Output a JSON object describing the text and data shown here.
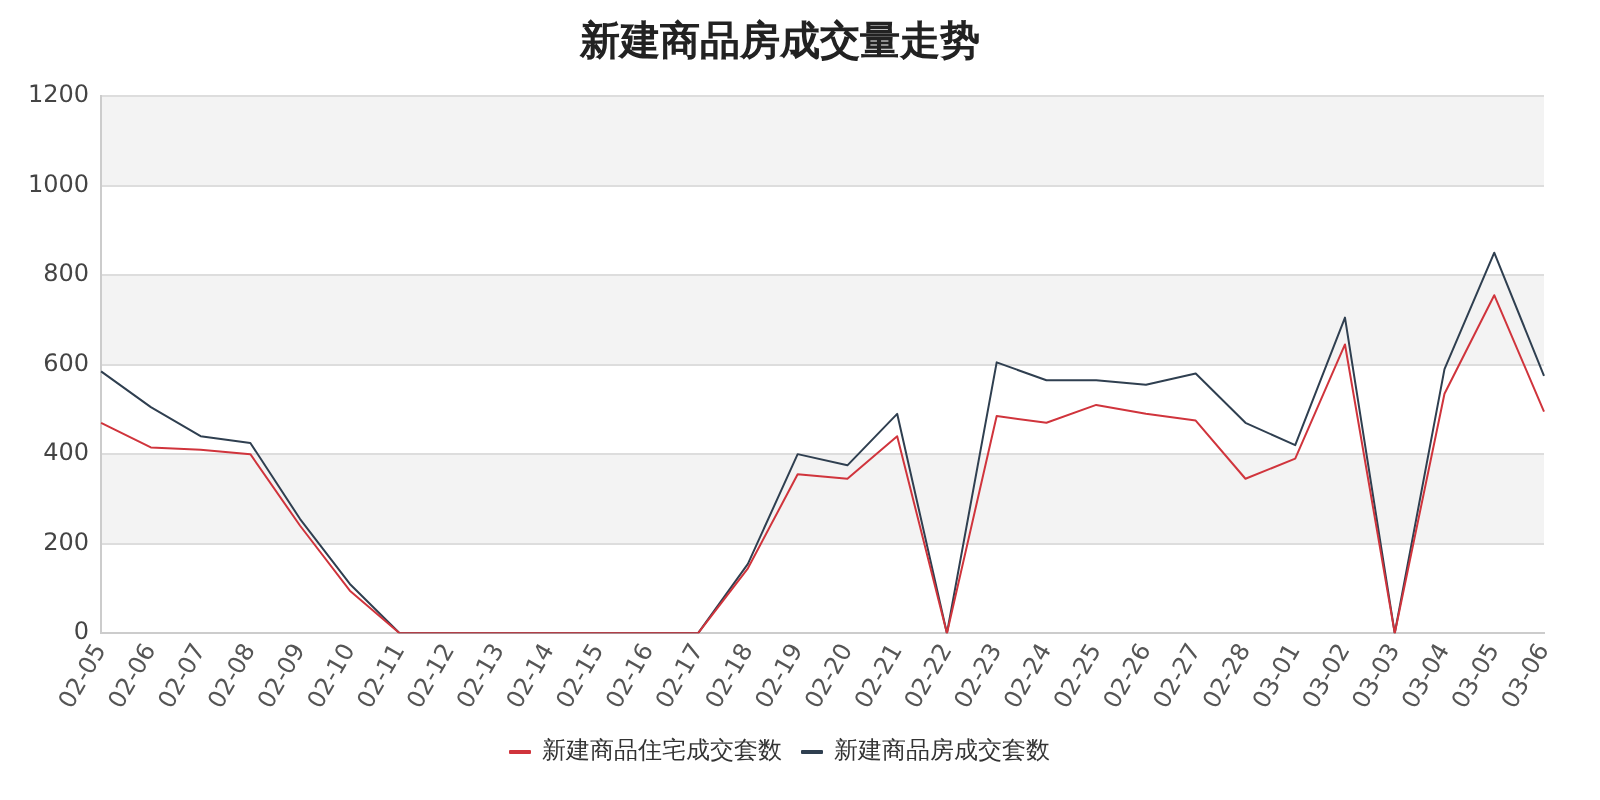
{
  "chart_data": {
    "type": "line",
    "title": "新建商品房成交量走势",
    "categories": [
      "02-05",
      "02-06",
      "02-07",
      "02-08",
      "02-09",
      "02-10",
      "02-11",
      "02-12",
      "02-13",
      "02-14",
      "02-15",
      "02-16",
      "02-17",
      "02-18",
      "02-19",
      "02-20",
      "02-21",
      "02-22",
      "02-23",
      "02-24",
      "02-25",
      "02-26",
      "02-27",
      "02-28",
      "03-01",
      "03-02",
      "03-03",
      "03-04",
      "03-05",
      "03-06"
    ],
    "series": [
      {
        "name": "新建商品住宅成交套数",
        "color": "#d0343c",
        "values": [
          470,
          415,
          410,
          400,
          240,
          95,
          0,
          0,
          0,
          0,
          0,
          0,
          0,
          145,
          355,
          345,
          440,
          0,
          485,
          470,
          510,
          490,
          475,
          345,
          390,
          645,
          0,
          535,
          755,
          495
        ]
      },
      {
        "name": "新建商品房成交套数",
        "color": "#2f3f50",
        "values": [
          585,
          505,
          440,
          425,
          255,
          110,
          0,
          0,
          0,
          0,
          0,
          0,
          0,
          155,
          400,
          375,
          490,
          0,
          605,
          565,
          565,
          555,
          580,
          470,
          420,
          705,
          0,
          590,
          850,
          575
        ]
      }
    ],
    "ylim": [
      0,
      1200
    ],
    "yticks": [
      0,
      200,
      400,
      600,
      800,
      1000,
      1200
    ],
    "grid": "y",
    "legend": "bottom",
    "marker": "none",
    "line_style": "solid"
  }
}
